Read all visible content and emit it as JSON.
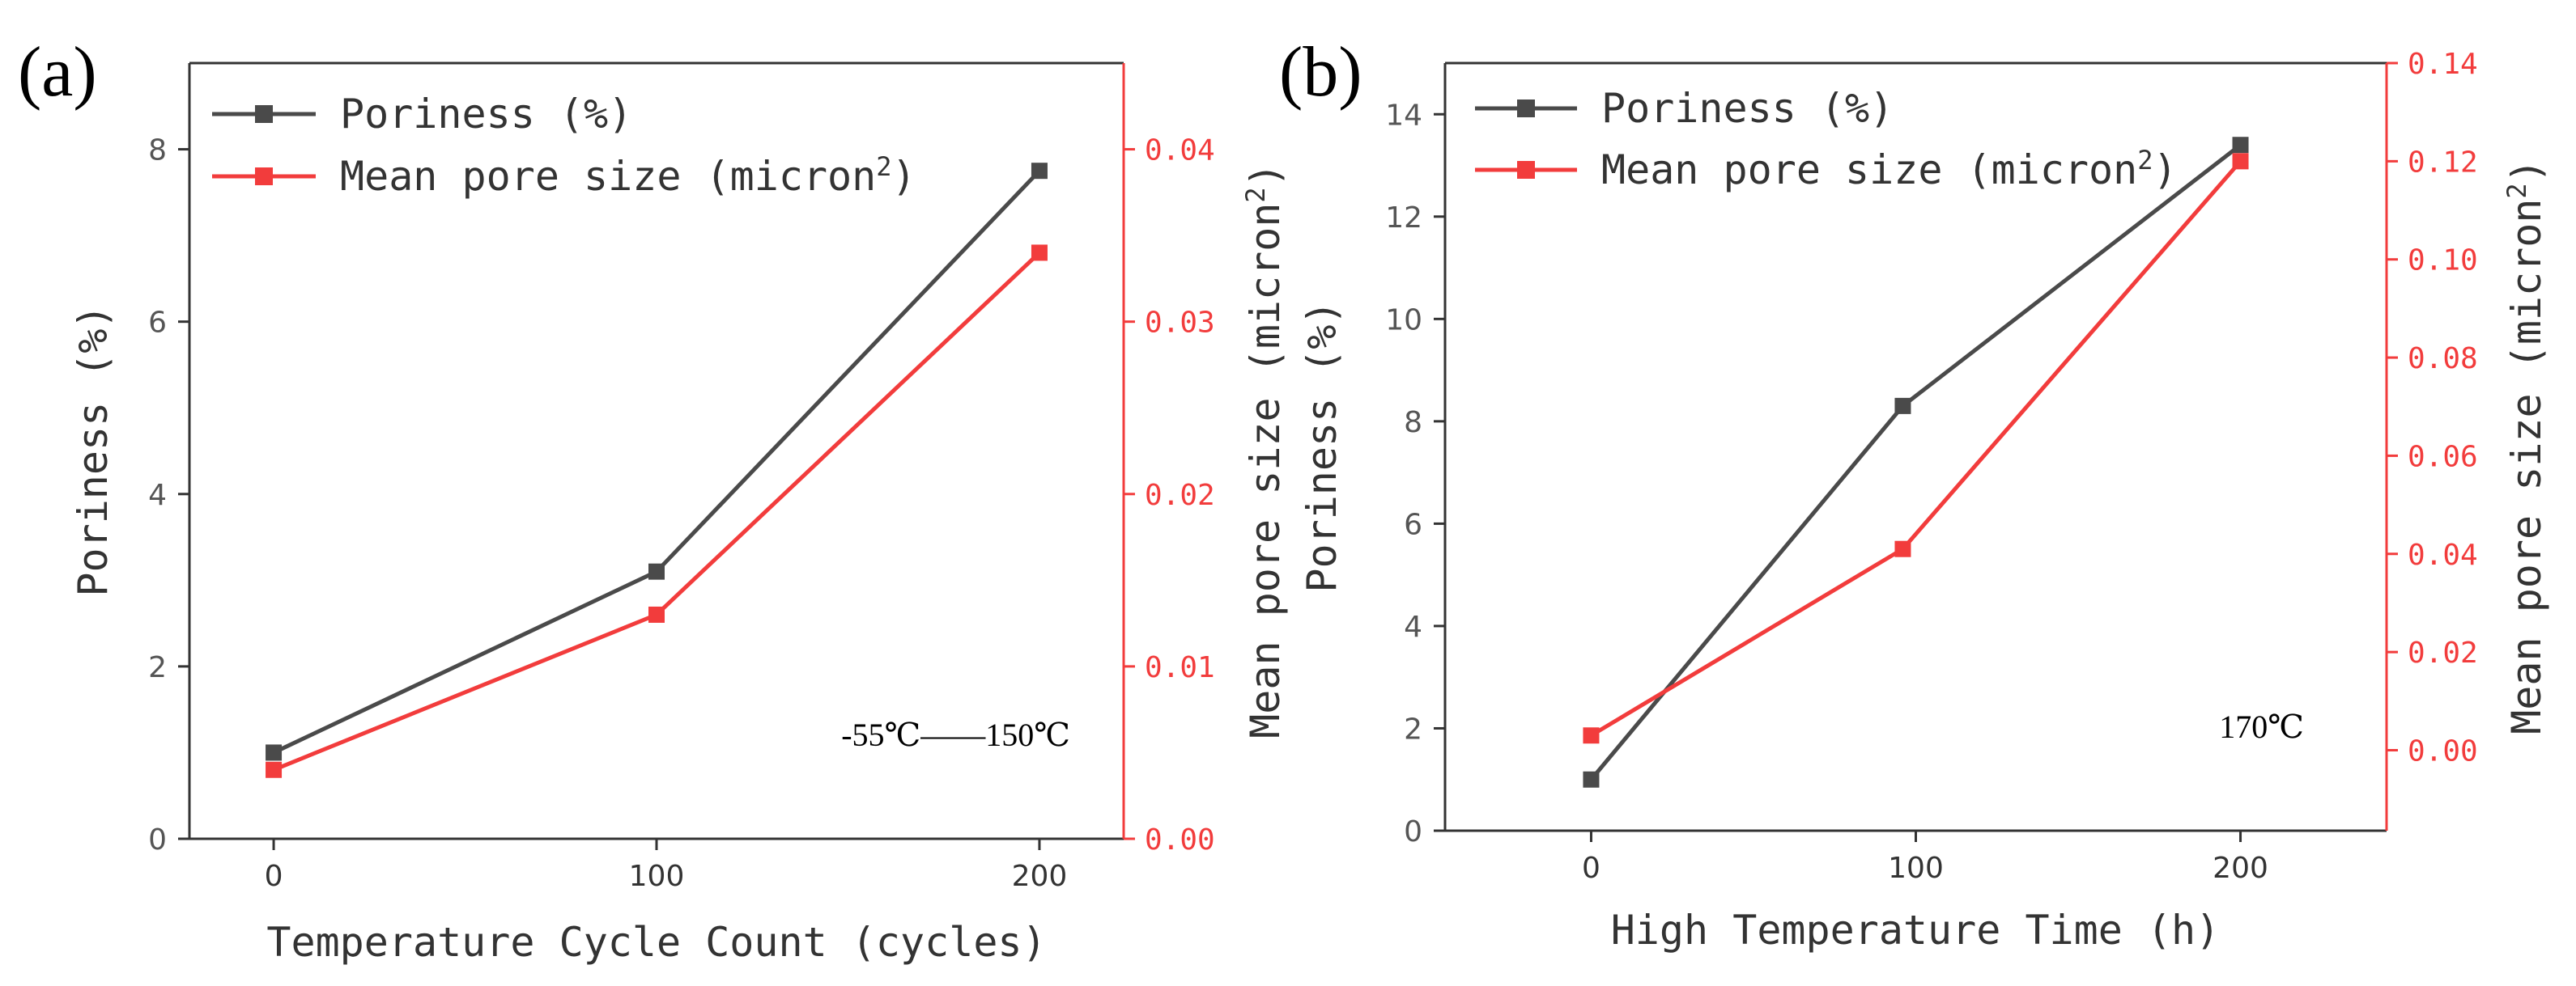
{
  "chart_data": [
    {
      "type": "line",
      "panel_label": "(a)",
      "xlabel": "Temperature Cycle Count (cycles)",
      "ylabel_left": "Poriness (%)",
      "ylabel_right_base": "Mean pore size (micron",
      "ylabel_right_sup": "2",
      "ylabel_right_end": ")",
      "annotation": "-55℃——150℃",
      "grid": false,
      "legend_position": "top-left",
      "x": [
        0,
        100,
        200
      ],
      "xlim": [
        -22,
        222
      ],
      "xticks": [
        "0",
        "100",
        "200"
      ],
      "ylim_left": [
        0,
        9
      ],
      "yticks_left": [
        "0",
        "2",
        "4",
        "6",
        "8"
      ],
      "ylim_right": [
        0,
        0.045
      ],
      "yticks_right": [
        "0.00",
        "0.01",
        "0.02",
        "0.03",
        "0.04"
      ],
      "series": [
        {
          "name": "Poriness (%)",
          "axis": "left",
          "color": "#4a4a4a",
          "values": [
            1.0,
            3.1,
            7.75
          ]
        },
        {
          "name_base": "Mean pore size (micron",
          "name_sup": "2",
          "name_end": ")",
          "axis": "right",
          "color": "#f23c3c",
          "values": [
            0.004,
            0.013,
            0.034
          ]
        }
      ]
    },
    {
      "type": "line",
      "panel_label": "(b)",
      "xlabel": "High Temperature Time (h)",
      "ylabel_left": "Poriness (%)",
      "ylabel_right_base": "Mean pore size (micron",
      "ylabel_right_sup": "2",
      "ylabel_right_end": ")",
      "annotation": "170℃",
      "grid": false,
      "legend_position": "top-left",
      "x": [
        0,
        96,
        200
      ],
      "xlim": [
        -45,
        245
      ],
      "xticks": [
        "0",
        "100",
        "200"
      ],
      "ylim_left": [
        0,
        15
      ],
      "yticks_left": [
        "0",
        "2",
        "4",
        "6",
        "8",
        "10",
        "12",
        "14"
      ],
      "ylim_right": [
        -0.0164,
        0.14
      ],
      "yticks_right": [
        "0.00",
        "0.02",
        "0.04",
        "0.06",
        "0.08",
        "0.10",
        "0.12",
        "0.14"
      ],
      "series": [
        {
          "name": "Poriness (%)",
          "axis": "left",
          "color": "#4a4a4a",
          "values": [
            1.0,
            8.3,
            13.4
          ]
        },
        {
          "name_base": "Mean pore size (micron",
          "name_sup": "2",
          "name_end": ")",
          "axis": "right",
          "color": "#f23c3c",
          "values": [
            0.003,
            0.041,
            0.12
          ]
        }
      ]
    }
  ]
}
